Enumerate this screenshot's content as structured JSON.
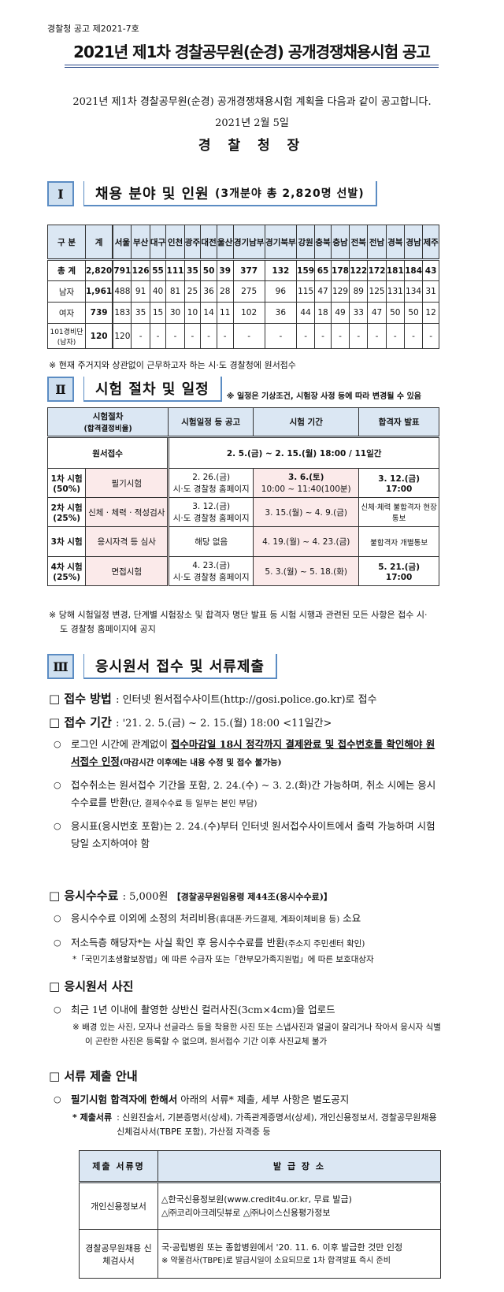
{
  "header": {
    "notice_no": "경찰청 공고 제2021-7호",
    "title": "2021년 제1차 경찰공무원(순경) 공개경쟁채용시험 공고",
    "intro": "2021년 제1차 경찰공무원(순경) 공개경쟁채용시험 계획을 다음과 같이 공고합니다.",
    "date": "2021년 2월 5일",
    "issuer": "경 찰 청 장"
  },
  "section1": {
    "num": "Ⅰ",
    "title": "채용 분야 및 인원",
    "subtitle": "(3개분야 총 2,820명 선발)",
    "table": {
      "headers": [
        "구 분",
        "계",
        "서울",
        "부산",
        "대구",
        "인천",
        "광주",
        "대전",
        "울산",
        "경기남부",
        "경기북부",
        "강원",
        "충북",
        "충남",
        "전북",
        "전남",
        "경북",
        "경남",
        "제주"
      ],
      "rows": [
        {
          "label": "총 계",
          "values": [
            "2,820",
            "791",
            "126",
            "55",
            "111",
            "35",
            "50",
            "39",
            "377",
            "132",
            "159",
            "65",
            "178",
            "122",
            "172",
            "181",
            "184",
            "43"
          ]
        },
        {
          "label": "남자",
          "values": [
            "1,961",
            "488",
            "91",
            "40",
            "81",
            "25",
            "36",
            "28",
            "275",
            "96",
            "115",
            "47",
            "129",
            "89",
            "125",
            "131",
            "134",
            "31"
          ]
        },
        {
          "label": "여자",
          "values": [
            "739",
            "183",
            "35",
            "15",
            "30",
            "10",
            "14",
            "11",
            "102",
            "36",
            "44",
            "18",
            "49",
            "33",
            "47",
            "50",
            "50",
            "12"
          ]
        },
        {
          "label": "101경비단(남자)",
          "values": [
            "120",
            "120",
            "-",
            "-",
            "-",
            "-",
            "-",
            "-",
            "-",
            "-",
            "-",
            "-",
            "-",
            "-",
            "-",
            "-",
            "-",
            "-"
          ]
        }
      ]
    },
    "note": "※ 현재 주거지와 상관없이 근무하고자 하는 시·도 경찰청에 원서접수"
  },
  "section2": {
    "num": "Ⅱ",
    "title": "시험 절차 및 일정",
    "note_top": "※ 일정은 기상조건, 시험장 사정 등에 따라 변경될 수 있음",
    "headers": [
      "시험절차",
      "(합격결정비율)",
      "시험일정 등 공고",
      "시험 기간",
      "합격자 발표"
    ],
    "application": {
      "label": "원서접수",
      "period": "2. 5.(금) ~ 2. 15.(월) 18:00 / 11일간"
    },
    "rows": [
      {
        "stage": "1차 시험",
        "ratio": "(50%)",
        "type": "필기시험",
        "notice": "2. 26.(금)",
        "notice_sub": "시·도 경찰청 홈페이지",
        "period": "3. 6.(토)",
        "period_sub": "10:00 ~ 11:40(100분)",
        "result": "3. 12.(금)",
        "result_sub": "17:00"
      },
      {
        "stage": "2차 시험",
        "ratio": "(25%)",
        "type": "신체 · 체력 · 적성검사",
        "notice": "3. 12.(금)",
        "notice_sub": "시·도 경찰청 홈페이지",
        "period": "3. 15.(월) ~ 4. 9.(금)",
        "period_sub": "",
        "result": "신체·체력 불합격자 현장통보",
        "result_sub": ""
      },
      {
        "stage": "3차 시험",
        "ratio": "",
        "type": "응시자격 등 심사",
        "notice": "해당 없음",
        "notice_sub": "",
        "period": "4. 19.(월) ~ 4. 23.(금)",
        "period_sub": "",
        "result": "불합격자 개별통보",
        "result_sub": ""
      },
      {
        "stage": "4차 시험",
        "ratio": "(25%)",
        "type": "면접시험",
        "notice": "4. 23.(금)",
        "notice_sub": "시·도 경찰청 홈페이지",
        "period": "5. 3.(월) ~ 5. 18.(화)",
        "period_sub": "",
        "result": "5. 21.(금)",
        "result_sub": "17:00"
      }
    ],
    "note_bottom": "※ 당해 시험일정 변경, 단계별 시험장소 및 합격자 명단 발표 등 시험 시행과 관련된 모든 사항은 접수 시·도 경찰청 홈페이지에 공지"
  },
  "section3": {
    "num": "Ⅲ",
    "title": "응시원서 접수 및 서류제출",
    "method": {
      "label": "□ 접수 방법",
      "text": ": 인터넷 원서접수사이트(http://gosi.police.go.kr)로 접수"
    },
    "period": {
      "label": "□ 접수 기간",
      "text": ": '21. 2. 5.(금) ~ 2. 15.(월) 18:00 <11일간>"
    },
    "period_bullets": {
      "b1_a": "로그인 시간에 관계없이 ",
      "b1_u1": "접수마감일 18시 정각까지 결제완료 및 접수번호를 확인해야 원서접수 인정",
      "b1_s": "(마감시간 이후에는 내용 수정 및 접수 불가능)",
      "b2": "접수취소는 원서접수 기간을 포함, 2. 24.(수) ~ 3. 2.(화)간 가능하며, 취소 시에는 응시수수료를 반환",
      "b2_s": "(단, 결제수수료 등 일부는 본인 부담)",
      "b3": "응시표(응시번호 포함)는 2. 24.(수)부터 인터넷 원서접수사이트에서 출력 가능하며 시험당일 소지하여야 함"
    },
    "fee": {
      "label": "□ 응시수수료",
      "amount": ": 5,000원",
      "ref": "【경찰공무원임용령 제44조(응시수수료)】",
      "b1": "응시수수료 이외에 소정의 처리비용",
      "b1_s": "(휴대폰·카드결제, 계좌이체비용 등)",
      "b1_end": " 소요",
      "b2": "저소득층 해당자*는 사실 확인 후 응시수수료를 반환",
      "b2_s": "(주소지 주민센터 확인)",
      "foot": "*「국민기초생활보장법」에 따른 수급자 또는「한부모가족지원법」에 따른 보호대상자"
    },
    "photo": {
      "label": "□ 응시원서 사진",
      "b1": "최근 1년 이내에 촬영한 상반신 컬러사진(3cm×4cm)을 업로드",
      "note": "※ 배경 있는 사진, 모자나 선글라스 등을 착용한 사진 또는 스냅사진과 얼굴이 잘리거나 작아서 응시자 식별이 곤란한 사진은 등록할 수 없으며, 원서접수 기간 이후 사진교체 불가"
    },
    "docs": {
      "label": "□ 서류 제출 안내",
      "b1_bold": "필기시험 합격자에 한해서",
      "b1": " 아래의 서류* 제출, 세부 사항은 별도공지",
      "list_label": "* 제출서류",
      "list": ": 신원진술서, 기본증명서(상세), 가족관계증명서(상세), 개인신용정보서, 경찰공무원채용신체검사서(TBPE 포함), 가산점 자격증 등",
      "table_headers": [
        "제출 서류명",
        "발 급 장 소"
      ],
      "table_rows": [
        {
          "name": "개인신용정보서",
          "place1": "△한국신용정보원(www.credit4u.or.kr, 무료 발급)",
          "place2": "△㈜코리아크레딧뷰로 △㈜나이스신용평가정보"
        },
        {
          "name": "경찰공무원채용 신체검사서",
          "place1": "국·공립병원 또는 종합병원에서 '20. 11. 6. 이후 발급한 것만 인정",
          "place2": "※ 약물검사(TBPE)로 발급시일이 소요되므로 1차 합격발표 즉시 준비"
        }
      ]
    }
  }
}
